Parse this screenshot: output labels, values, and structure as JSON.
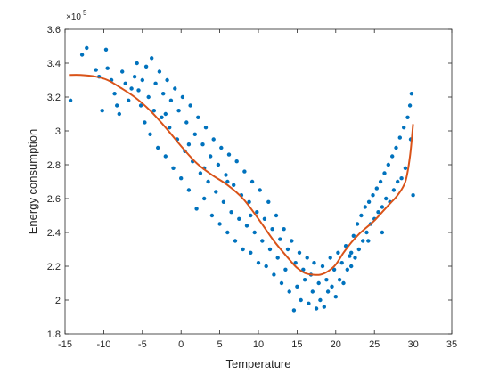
{
  "chart_data": {
    "type": "scatter",
    "title": "",
    "xlabel": "Temperature",
    "ylabel": "Energy consumption",
    "y_exponent_base": "×10",
    "y_exponent_power": "5",
    "xlim": [
      -15,
      35
    ],
    "ylim": [
      1.8,
      3.6
    ],
    "y_scale_factor": 100000,
    "x_ticks": [
      -15,
      -10,
      -5,
      0,
      5,
      10,
      15,
      20,
      25,
      30,
      35
    ],
    "x_tick_labels": [
      "-15",
      "-10",
      "-5",
      "0",
      "5",
      "10",
      "15",
      "20",
      "25",
      "30",
      "35"
    ],
    "y_ticks": [
      1.8,
      2,
      2.2,
      2.4,
      2.6,
      2.8,
      3,
      3.2,
      3.4,
      3.6
    ],
    "y_tick_labels": [
      "1.8",
      "2",
      "2.2",
      "2.4",
      "2.6",
      "2.8",
      "3",
      "3.2",
      "3.4",
      "3.6"
    ],
    "grid": false,
    "legend": "none",
    "series": [
      {
        "kind": "scatter",
        "color": "#0072BD",
        "points": [
          [
            -14.3,
            3.18
          ],
          [
            -12.8,
            3.45
          ],
          [
            -12.2,
            3.49
          ],
          [
            -11.0,
            3.36
          ],
          [
            -10.6,
            3.32
          ],
          [
            -10.2,
            3.12
          ],
          [
            -9.7,
            3.48
          ],
          [
            -9.5,
            3.37
          ],
          [
            -9.0,
            3.3
          ],
          [
            -8.6,
            3.22
          ],
          [
            -8.3,
            3.15
          ],
          [
            -8.0,
            3.1
          ],
          [
            -7.6,
            3.35
          ],
          [
            -7.2,
            3.28
          ],
          [
            -6.8,
            3.18
          ],
          [
            -6.4,
            3.25
          ],
          [
            -6.0,
            3.32
          ],
          [
            -5.7,
            3.4
          ],
          [
            -5.5,
            3.24
          ],
          [
            -5.2,
            3.15
          ],
          [
            -5.0,
            3.3
          ],
          [
            -4.7,
            3.05
          ],
          [
            -4.5,
            3.38
          ],
          [
            -4.2,
            3.2
          ],
          [
            -4.0,
            2.98
          ],
          [
            -3.8,
            3.43
          ],
          [
            -3.5,
            3.12
          ],
          [
            -3.3,
            3.28
          ],
          [
            -3.0,
            2.9
          ],
          [
            -2.8,
            3.35
          ],
          [
            -2.5,
            3.08
          ],
          [
            -2.3,
            3.22
          ],
          [
            -2.0,
            2.85
          ],
          [
            -1.8,
            3.3
          ],
          [
            -1.5,
            3.02
          ],
          [
            -1.3,
            3.18
          ],
          [
            -1.0,
            2.78
          ],
          [
            -0.8,
            3.25
          ],
          [
            -0.5,
            2.95
          ],
          [
            -0.3,
            3.12
          ],
          [
            0.0,
            2.72
          ],
          [
            0.2,
            3.2
          ],
          [
            0.5,
            2.88
          ],
          [
            0.7,
            3.05
          ],
          [
            1.0,
            2.65
          ],
          [
            1.2,
            3.15
          ],
          [
            1.5,
            2.82
          ],
          [
            1.8,
            2.98
          ],
          [
            2.0,
            2.54
          ],
          [
            2.2,
            3.08
          ],
          [
            2.5,
            2.75
          ],
          [
            2.8,
            2.92
          ],
          [
            3.0,
            2.6
          ],
          [
            3.2,
            3.02
          ],
          [
            3.5,
            2.7
          ],
          [
            3.8,
            2.85
          ],
          [
            4.0,
            2.5
          ],
          [
            4.2,
            2.95
          ],
          [
            4.5,
            2.64
          ],
          [
            4.8,
            2.8
          ],
          [
            5.0,
            2.45
          ],
          [
            5.2,
            2.9
          ],
          [
            5.5,
            2.58
          ],
          [
            5.8,
            2.74
          ],
          [
            6.0,
            2.4
          ],
          [
            6.2,
            2.86
          ],
          [
            6.5,
            2.52
          ],
          [
            6.8,
            2.68
          ],
          [
            7.0,
            2.35
          ],
          [
            7.2,
            2.82
          ],
          [
            7.5,
            2.48
          ],
          [
            7.8,
            2.62
          ],
          [
            8.0,
            2.3
          ],
          [
            8.2,
            2.76
          ],
          [
            8.5,
            2.44
          ],
          [
            8.8,
            2.58
          ],
          [
            9.0,
            2.28
          ],
          [
            9.2,
            2.7
          ],
          [
            9.5,
            2.4
          ],
          [
            9.8,
            2.52
          ],
          [
            10.0,
            2.22
          ],
          [
            10.2,
            2.65
          ],
          [
            10.5,
            2.35
          ],
          [
            10.8,
            2.48
          ],
          [
            11.0,
            2.2
          ],
          [
            11.3,
            2.58
          ],
          [
            11.5,
            2.3
          ],
          [
            11.8,
            2.42
          ],
          [
            12.0,
            2.15
          ],
          [
            12.3,
            2.5
          ],
          [
            12.5,
            2.25
          ],
          [
            12.8,
            2.36
          ],
          [
            13.0,
            2.1
          ],
          [
            13.3,
            2.42
          ],
          [
            13.5,
            2.18
          ],
          [
            13.8,
            2.3
          ],
          [
            14.0,
            2.05
          ],
          [
            14.3,
            2.35
          ],
          [
            14.6,
            1.94
          ],
          [
            14.8,
            2.22
          ],
          [
            15.0,
            2.08
          ],
          [
            15.3,
            2.28
          ],
          [
            15.5,
            2.0
          ],
          [
            15.8,
            2.18
          ],
          [
            16.0,
            2.12
          ],
          [
            16.3,
            2.25
          ],
          [
            16.5,
            1.98
          ],
          [
            16.8,
            2.15
          ],
          [
            17.0,
            2.05
          ],
          [
            17.2,
            2.22
          ],
          [
            17.5,
            1.95
          ],
          [
            17.8,
            2.1
          ],
          [
            18.0,
            2.0
          ],
          [
            18.3,
            2.2
          ],
          [
            18.5,
            1.96
          ],
          [
            18.8,
            2.12
          ],
          [
            19.0,
            2.05
          ],
          [
            19.3,
            2.25
          ],
          [
            19.5,
            2.08
          ],
          [
            19.8,
            2.18
          ],
          [
            20.0,
            2.02
          ],
          [
            20.3,
            2.28
          ],
          [
            20.5,
            2.12
          ],
          [
            20.8,
            2.22
          ],
          [
            21.0,
            2.1
          ],
          [
            21.3,
            2.32
          ],
          [
            21.5,
            2.18
          ],
          [
            21.8,
            2.26
          ],
          [
            22.0,
            2.2
          ],
          [
            22.3,
            2.38
          ],
          [
            22.5,
            2.25
          ],
          [
            22.8,
            2.45
          ],
          [
            23.0,
            2.3
          ],
          [
            23.3,
            2.5
          ],
          [
            23.5,
            2.35
          ],
          [
            23.8,
            2.55
          ],
          [
            24.0,
            2.4
          ],
          [
            24.3,
            2.58
          ],
          [
            24.5,
            2.45
          ],
          [
            24.8,
            2.62
          ],
          [
            25.0,
            2.48
          ],
          [
            25.3,
            2.66
          ],
          [
            25.5,
            2.52
          ],
          [
            25.8,
            2.7
          ],
          [
            26.0,
            2.55
          ],
          [
            26.3,
            2.75
          ],
          [
            26.5,
            2.6
          ],
          [
            26.8,
            2.8
          ],
          [
            27.0,
            2.58
          ],
          [
            27.3,
            2.85
          ],
          [
            27.5,
            2.65
          ],
          [
            27.8,
            2.9
          ],
          [
            28.0,
            2.7
          ],
          [
            28.3,
            2.96
          ],
          [
            28.5,
            2.72
          ],
          [
            28.8,
            3.02
          ],
          [
            29.0,
            2.78
          ],
          [
            29.3,
            3.08
          ],
          [
            29.6,
            3.15
          ],
          [
            29.8,
            3.22
          ],
          [
            30.0,
            2.62
          ],
          [
            29.7,
            2.95
          ],
          [
            26.0,
            2.4
          ],
          [
            24.2,
            2.35
          ],
          [
            22.0,
            2.28
          ],
          [
            3.0,
            2.78
          ],
          [
            1.0,
            2.92
          ],
          [
            6.0,
            2.7
          ],
          [
            -2.0,
            3.1
          ],
          [
            9.0,
            2.5
          ]
        ]
      },
      {
        "kind": "line",
        "name": "",
        "color": "#D95319",
        "points": [
          [
            -14.5,
            3.33
          ],
          [
            -13,
            3.33
          ],
          [
            -11,
            3.32
          ],
          [
            -9.5,
            3.3
          ],
          [
            -8,
            3.26
          ],
          [
            -6,
            3.2
          ],
          [
            -4,
            3.12
          ],
          [
            -2,
            3.02
          ],
          [
            0,
            2.91
          ],
          [
            2,
            2.81
          ],
          [
            4,
            2.74
          ],
          [
            6,
            2.68
          ],
          [
            8,
            2.6
          ],
          [
            10,
            2.48
          ],
          [
            12,
            2.35
          ],
          [
            14,
            2.24
          ],
          [
            15,
            2.19
          ],
          [
            16,
            2.16
          ],
          [
            17,
            2.15
          ],
          [
            18,
            2.15
          ],
          [
            19,
            2.17
          ],
          [
            20,
            2.21
          ],
          [
            21,
            2.28
          ],
          [
            22,
            2.34
          ],
          [
            23,
            2.39
          ],
          [
            24,
            2.43
          ],
          [
            25,
            2.47
          ],
          [
            26,
            2.52
          ],
          [
            27,
            2.57
          ],
          [
            28,
            2.62
          ],
          [
            29,
            2.7
          ],
          [
            29.6,
            2.85
          ],
          [
            30,
            3.04
          ]
        ]
      }
    ]
  }
}
